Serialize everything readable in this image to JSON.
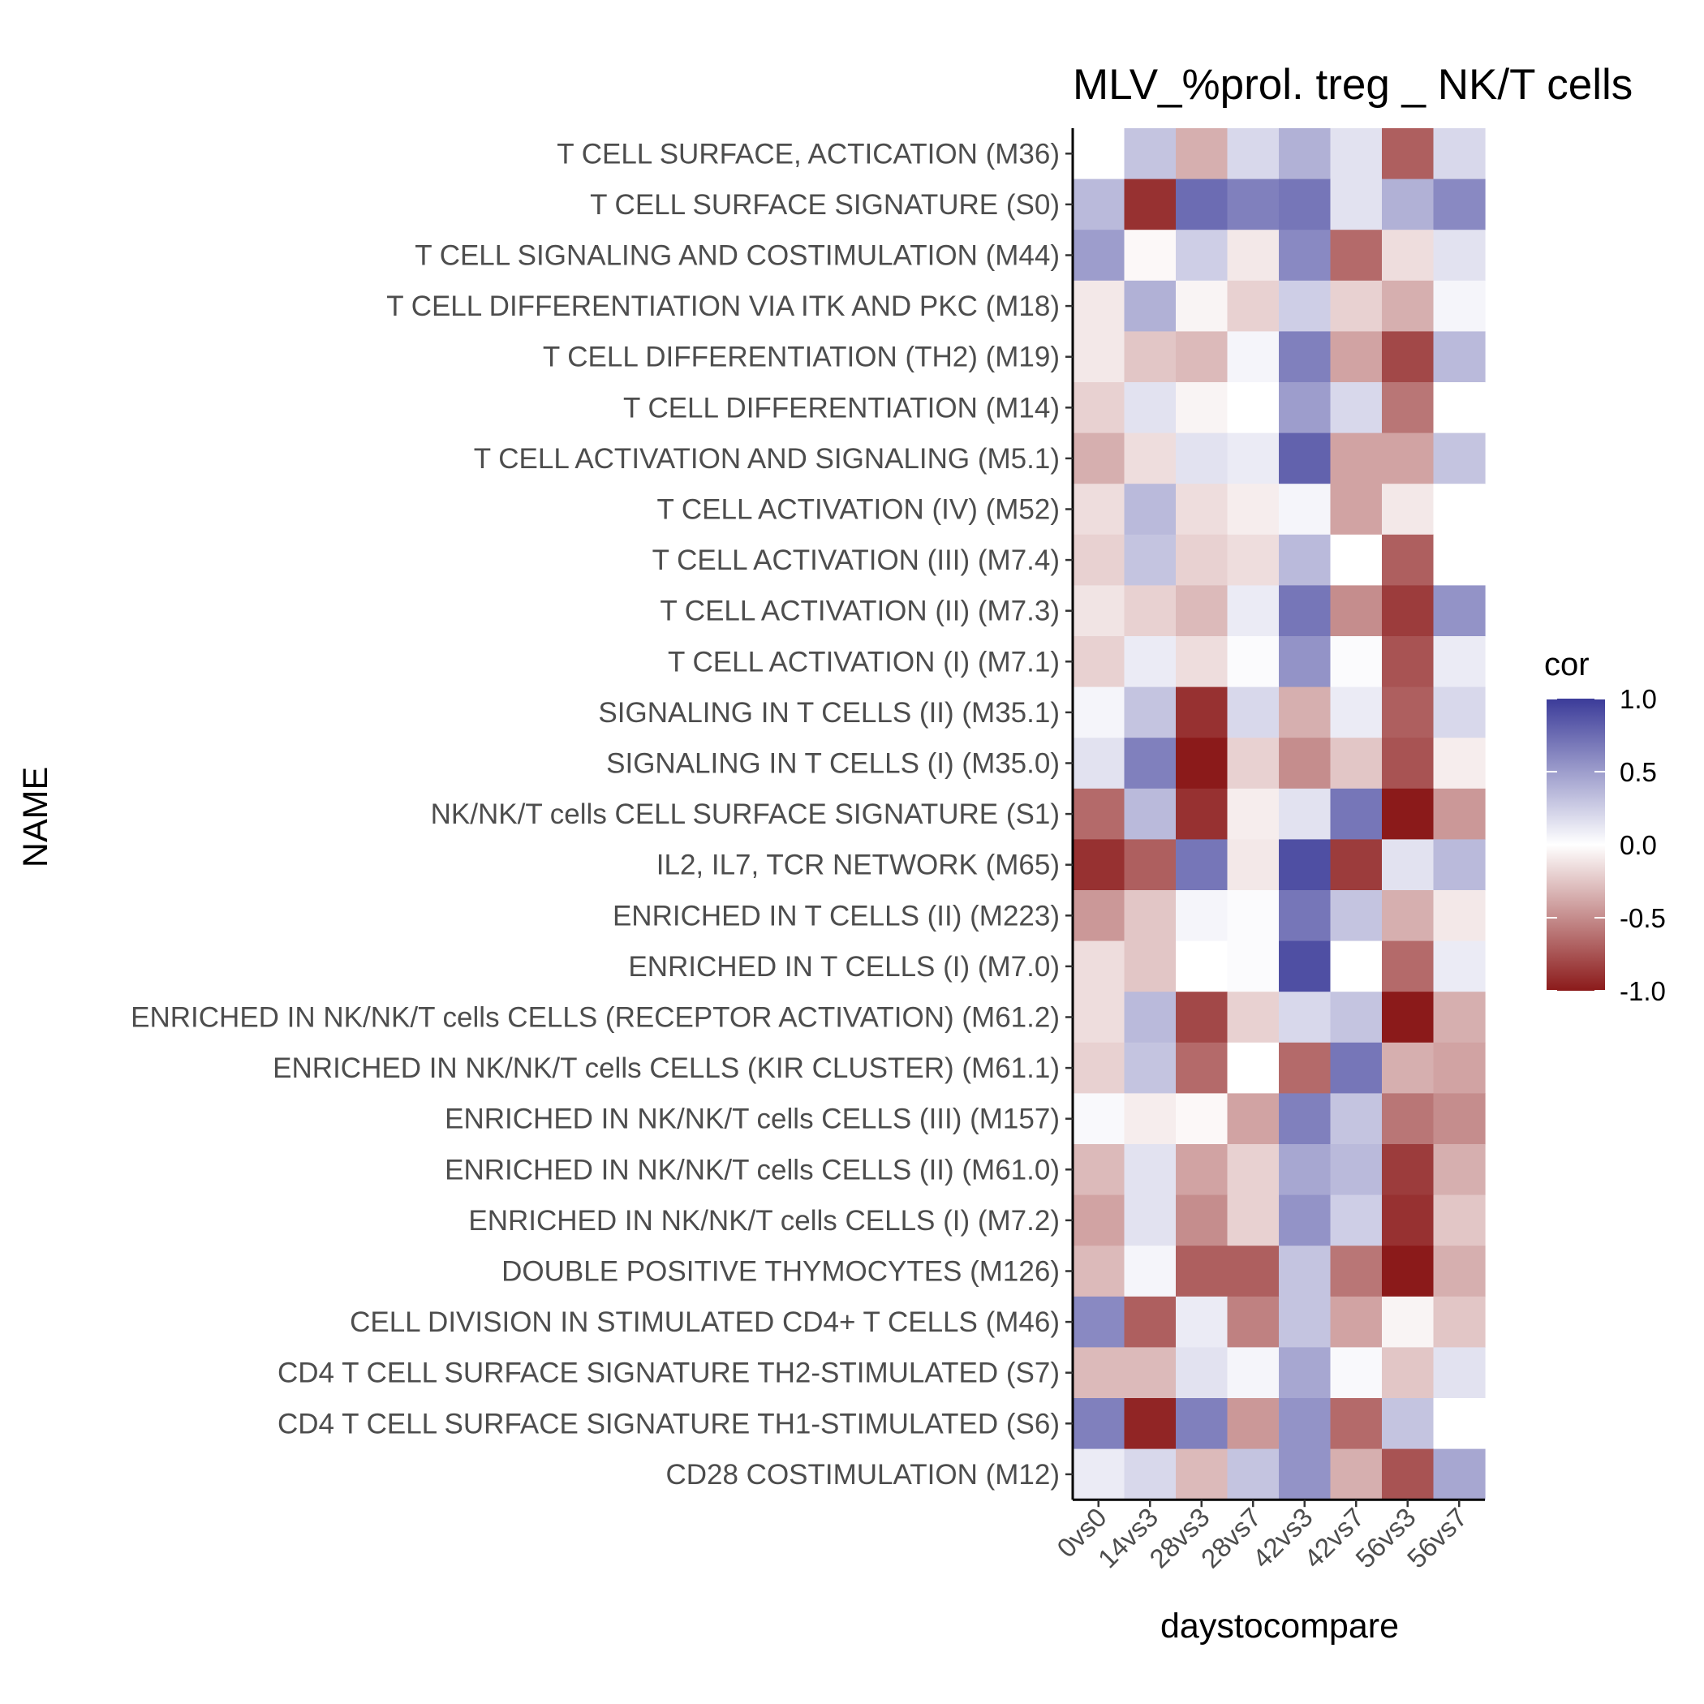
{
  "chart_data": {
    "type": "heatmap",
    "title": "MLV_%prol. treg _ NK/T cells",
    "xlabel": "daystocompare",
    "ylabel": "NAME",
    "x_categories": [
      "0vs0",
      "14vs3",
      "28vs3",
      "28vs7",
      "42vs3",
      "42vs7",
      "56vs3",
      "56vs7"
    ],
    "y_categories": [
      "T CELL SURFACE, ACTICATION (M36)",
      "T CELL SURFACE SIGNATURE (S0)",
      "T CELL SIGNALING AND COSTIMULATION (M44)",
      "T CELL DIFFERENTIATION VIA ITK AND PKC (M18)",
      "T CELL DIFFERENTIATION (TH2) (M19)",
      "T CELL DIFFERENTIATION (M14)",
      "T CELL ACTIVATION AND SIGNALING (M5.1)",
      "T CELL ACTIVATION (IV) (M52)",
      "T CELL ACTIVATION (III) (M7.4)",
      "T CELL ACTIVATION (II) (M7.3)",
      "T CELL ACTIVATION (I) (M7.1)",
      "SIGNALING IN T CELLS (II) (M35.1)",
      "SIGNALING IN T CELLS (I) (M35.0)",
      "NK/NK/T cells CELL SURFACE SIGNATURE (S1)",
      "IL2, IL7, TCR NETWORK (M65)",
      "ENRICHED IN T CELLS (II) (M223)",
      "ENRICHED IN T CELLS (I) (M7.0)",
      "ENRICHED IN NK/NK/T cells CELLS (RECEPTOR ACTIVATION) (M61.2)",
      "ENRICHED IN NK/NK/T cells CELLS (KIR CLUSTER) (M61.1)",
      "ENRICHED IN NK/NK/T cells CELLS (III) (M157)",
      "ENRICHED IN NK/NK/T cells CELLS (II) (M61.0)",
      "ENRICHED IN NK/NK/T cells CELLS (I) (M7.2)",
      "DOUBLE POSITIVE THYMOCYTES (M126)",
      "CELL DIVISION IN STIMULATED CD4+ T CELLS (M46)",
      "CD4 T CELL SURFACE SIGNATURE TH2-STIMULATED (S7)",
      "CD4 T CELL SURFACE SIGNATURE TH1-STIMULATED (S6)",
      "CD28 COSTIMULATION (M12)"
    ],
    "values": [
      [
        0.0,
        0.3,
        -0.35,
        0.2,
        0.4,
        0.15,
        -0.7,
        0.2
      ],
      [
        0.35,
        -0.9,
        0.75,
        0.65,
        0.7,
        0.15,
        0.4,
        0.6
      ],
      [
        0.5,
        -0.03,
        0.25,
        -0.1,
        0.6,
        -0.65,
        -0.15,
        0.15
      ],
      [
        -0.1,
        0.4,
        -0.05,
        -0.2,
        0.25,
        -0.2,
        -0.35,
        0.05
      ],
      [
        -0.1,
        -0.25,
        -0.3,
        0.05,
        0.65,
        -0.4,
        -0.8,
        0.35
      ],
      [
        -0.2,
        0.15,
        -0.05,
        0.0,
        0.5,
        0.2,
        -0.6,
        0.0
      ],
      [
        -0.35,
        -0.15,
        0.15,
        0.1,
        0.8,
        -0.4,
        -0.4,
        0.3
      ],
      [
        -0.15,
        0.35,
        -0.15,
        -0.08,
        0.05,
        -0.4,
        -0.1,
        0.0
      ],
      [
        -0.2,
        0.3,
        -0.2,
        -0.15,
        0.35,
        0.0,
        -0.7,
        0.0
      ],
      [
        -0.12,
        -0.2,
        -0.3,
        0.1,
        0.7,
        -0.5,
        -0.85,
        0.55
      ],
      [
        -0.2,
        0.1,
        -0.15,
        0.02,
        0.55,
        0.02,
        -0.75,
        0.1
      ],
      [
        0.05,
        0.3,
        -0.9,
        0.2,
        -0.35,
        0.1,
        -0.7,
        0.2
      ],
      [
        0.15,
        0.65,
        -1.0,
        -0.2,
        -0.5,
        -0.25,
        -0.75,
        -0.08
      ],
      [
        -0.65,
        0.35,
        -0.9,
        -0.08,
        0.15,
        0.7,
        -1.0,
        -0.45
      ],
      [
        -0.9,
        -0.7,
        0.7,
        -0.1,
        0.9,
        -0.85,
        0.15,
        0.35
      ],
      [
        -0.45,
        -0.25,
        0.05,
        0.02,
        0.7,
        0.3,
        -0.35,
        -0.1
      ],
      [
        -0.15,
        -0.25,
        0.0,
        0.02,
        0.9,
        0.0,
        -0.65,
        0.1
      ],
      [
        -0.15,
        0.35,
        -0.8,
        -0.2,
        0.2,
        0.3,
        -1.0,
        -0.35
      ],
      [
        -0.2,
        0.3,
        -0.65,
        0.0,
        -0.65,
        0.7,
        -0.35,
        -0.4
      ],
      [
        0.03,
        -0.08,
        -0.03,
        -0.4,
        0.65,
        0.3,
        -0.6,
        -0.5
      ],
      [
        -0.3,
        0.15,
        -0.4,
        -0.2,
        0.45,
        0.35,
        -0.85,
        -0.35
      ],
      [
        -0.4,
        0.15,
        -0.5,
        -0.2,
        0.55,
        0.25,
        -0.9,
        -0.25
      ],
      [
        -0.3,
        0.05,
        -0.7,
        -0.7,
        0.3,
        -0.6,
        -1.0,
        -0.35
      ],
      [
        0.6,
        -0.7,
        0.1,
        -0.55,
        0.3,
        -0.4,
        -0.05,
        -0.25
      ],
      [
        -0.3,
        -0.3,
        0.15,
        0.05,
        0.45,
        0.03,
        -0.25,
        0.15
      ],
      [
        0.65,
        -0.95,
        0.65,
        -0.45,
        0.55,
        -0.65,
        0.3,
        0.0
      ],
      [
        0.1,
        0.2,
        -0.3,
        0.3,
        0.55,
        -0.35,
        -0.75,
        0.45
      ]
    ],
    "colorbar": {
      "title": "cor",
      "range": [
        -1,
        1
      ],
      "ticks": [
        "1.0",
        "0.5",
        "0.0",
        "-0.5",
        "-1.0"
      ],
      "tick_values": [
        1.0,
        0.5,
        0.0,
        -0.5,
        -1.0
      ],
      "low_color": "#8b1a1a",
      "mid_color": "#ffffff",
      "high_color": "#3b3b99"
    },
    "grid": false,
    "legend_position": "right"
  }
}
